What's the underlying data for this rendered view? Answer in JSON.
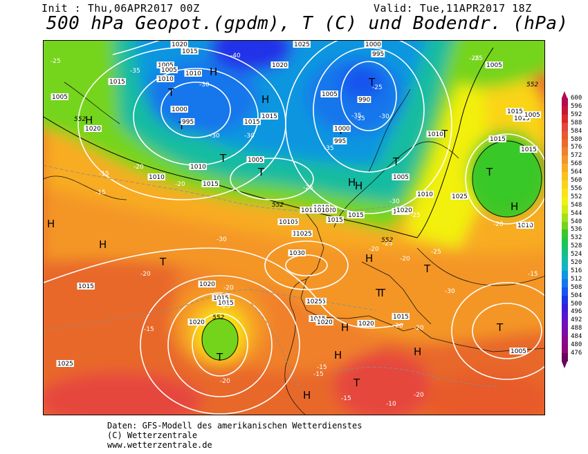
{
  "header": {
    "init": "Init : Thu,06APR2017 00Z",
    "valid": "Valid: Tue,11APR2017 18Z",
    "title": "500 hPa Geopot.(gpdm), T (C) und Bodendr. (hPa)"
  },
  "legend": {
    "values": [
      "600",
      "596",
      "592",
      "588",
      "584",
      "580",
      "576",
      "572",
      "568",
      "564",
      "560",
      "556",
      "552",
      "548",
      "544",
      "540",
      "536",
      "532",
      "528",
      "524",
      "520",
      "516",
      "512",
      "508",
      "504",
      "500",
      "496",
      "492",
      "488",
      "484",
      "480",
      "476"
    ],
    "colors": [
      "#b40a50",
      "#c8143c",
      "#dc2828",
      "#e6463c",
      "#e85a2c",
      "#ec6a2c",
      "#f0802a",
      "#f49628",
      "#f8ac24",
      "#fac21e",
      "#fad418",
      "#f8e414",
      "#f2f010",
      "#d2ec14",
      "#a4e018",
      "#74d41c",
      "#38c828",
      "#1cc84a",
      "#18c078",
      "#14bca0",
      "#10b4c4",
      "#1096e0",
      "#1476ec",
      "#1854ee",
      "#2032e8",
      "#3a1ce0",
      "#5a14d0",
      "#6e10bc",
      "#7c0ca4",
      "#88088c",
      "#8c0678",
      "#6a0458"
    ]
  },
  "map": {
    "pressure_labels": [
      "1020",
      "1015",
      "1005",
      "1010",
      "1015",
      "1025",
      "1000",
      "995",
      "1005",
      "1020",
      "1005",
      "1010",
      "1000",
      "995",
      "990",
      "1005",
      "1015",
      "1010",
      "1015",
      "1010",
      "1015",
      "1010",
      "1015",
      "1000",
      "995",
      "1005",
      "1010",
      "1015",
      "1005",
      "1020",
      "1015",
      "1010",
      "1025",
      "1015",
      "1010",
      "1020",
      "1010",
      "1015",
      "1015",
      "1010",
      "1020",
      "1025",
      "1030",
      "1015",
      "1020",
      "1025",
      "1015",
      "1015",
      "1015",
      "1025",
      "1020",
      "1015",
      "1020",
      "1025",
      "1015",
      "1005",
      "1020",
      "1015",
      "1015",
      "1005",
      "1010",
      "1005"
    ],
    "pressure_labels_pos_note": "",
    "temperature_labels": [
      "-25",
      "-30",
      "-40",
      "-35",
      "-25",
      "-30",
      "-30",
      "-35",
      "-20",
      "-30",
      "-35",
      "-25",
      "-30",
      "-25",
      "-20",
      "-15",
      "-15",
      "-20",
      "-25",
      "-35",
      "-30",
      "-25",
      "-20",
      "-20",
      "-25",
      "-20",
      "-20",
      "-20",
      "-15",
      "-20",
      "-15",
      "-15",
      "-25",
      "-30",
      "-25",
      "-20",
      "-15",
      "-15",
      "-10",
      "-20",
      "-20"
    ],
    "geopotential_labels": [
      "552",
      "552",
      "552",
      "552",
      "552"
    ],
    "pressure_centers": [
      "H",
      "H",
      "T",
      "T",
      "H",
      "T",
      "T",
      "H",
      "T",
      "H",
      "T",
      "T",
      "T",
      "H",
      "T",
      "H",
      "T",
      "H",
      "H",
      "T",
      "T",
      "H",
      "T",
      "H",
      "T",
      "T",
      "T",
      "H",
      "H",
      "H",
      "T",
      "H",
      "T",
      "H",
      "T",
      "H",
      "H",
      "H",
      "H"
    ]
  },
  "footer": {
    "line1": "Daten: GFS-Modell des amerikanischen Wetterdienstes",
    "line2": "(C) Wetterzentrale",
    "line3": "www.wetterzentrale.de"
  }
}
